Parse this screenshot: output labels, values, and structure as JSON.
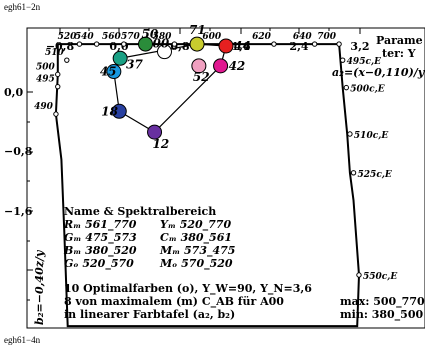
{
  "header": {
    "top_code": "egh61−2n",
    "bottom_code": "egh61−4n"
  },
  "corner": {
    "line1": "Parame",
    "line2": "ter: Y"
  },
  "axis": {
    "x_ticks": [
      "−0,8",
      "0,0",
      "0,8",
      "1,6",
      "2,4",
      "3,2"
    ],
    "y_ticks": [
      "0,0",
      "−0,8",
      "−1,6"
    ],
    "x_title": "a₂=(x−0,110)/y",
    "y_title": "b₂=−0,40z/y"
  },
  "legend": {
    "line1": "Name & Spektralbereich",
    "r_left": "Rₘ 561_770",
    "r_right": "Yₘ 520_770",
    "g_left": "Gₘ 475_573",
    "g_right": "Cₘ 380_561",
    "b_left": "Bₘ 380_520",
    "b_right": "Mₘ 573_475",
    "o_left": "Gₒ 520_570",
    "o_right": "Mₒ 570_520",
    "line6": "10 Optimalfarben (o), Y_W=90, Y_N=3,6",
    "line7": "8 von maximalem (m) C_AB für A00",
    "line8": "in linearer Farbtafel (a₂, b₂)",
    "max": "max: 500_770",
    "min": "min: 380_500"
  },
  "chart_data": {
    "type": "scatter",
    "xlim": [
      -0.95,
      3.45
    ],
    "ylim": [
      -2.95,
      0.22
    ],
    "boundary": [
      [
        -0.61,
        0.05
      ],
      [
        -0.61,
        -0.27
      ],
      [
        -0.63,
        -0.69
      ],
      [
        -0.57,
        -1.17
      ],
      [
        -0.54,
        -1.88
      ],
      [
        -0.5,
        -2.93
      ],
      [
        2.7,
        -2.93
      ],
      [
        2.72,
        -2.39
      ],
      [
        2.66,
        -1.6
      ],
      [
        2.62,
        -1.31
      ],
      [
        2.59,
        -0.9
      ],
      [
        2.54,
        -0.41
      ],
      [
        2.5,
        0.05
      ],
      [
        -0.61,
        0.05
      ]
    ],
    "spectral_points": [
      {
        "label": "490",
        "x": -0.63,
        "y": -0.69
      },
      {
        "label": "495",
        "x": -0.61,
        "y": -0.4
      },
      {
        "label": "500",
        "x": -0.61,
        "y": -0.27
      },
      {
        "label": "510",
        "x": -0.51,
        "y": -0.12
      },
      {
        "label": "520",
        "x": -0.37,
        "y": 0.05
      },
      {
        "label": "540",
        "x": -0.18,
        "y": 0.05
      },
      {
        "label": "560",
        "x": 0.12,
        "y": 0.05
      },
      {
        "label": "570",
        "x": 0.33,
        "y": 0.05
      },
      {
        "label": "580",
        "x": 0.68,
        "y": 0.05
      },
      {
        "label": "600",
        "x": 1.23,
        "y": 0.05
      },
      {
        "label": "620",
        "x": 1.78,
        "y": 0.05
      },
      {
        "label": "640",
        "x": 2.23,
        "y": 0.05
      },
      {
        "label": "700",
        "x": 2.5,
        "y": 0.05
      },
      {
        "label": "495c,E",
        "x": 2.54,
        "y": -0.12
      },
      {
        "label": "500c,E",
        "x": 2.58,
        "y": -0.41
      },
      {
        "label": "510c,E",
        "x": 2.62,
        "y": -0.9
      },
      {
        "label": "525c,E",
        "x": 2.66,
        "y": -1.31
      },
      {
        "label": "550c,E",
        "x": 2.72,
        "y": -2.39
      }
    ],
    "samples": [
      {
        "label": "71",
        "x": 0.93,
        "y": 0.05,
        "color": "#c8cc2e"
      },
      {
        "label": "37",
        "x": 0.08,
        "y": -0.1,
        "color": "#1aa084"
      },
      {
        "label": "45",
        "x": 0.01,
        "y": -0.24,
        "color": "#1898e0"
      },
      {
        "label": "44",
        "x": 1.25,
        "y": 0.03,
        "color": "#e62020"
      },
      {
        "label": "42",
        "x": 1.19,
        "y": -0.18,
        "color": "#e01890"
      },
      {
        "label": "52",
        "x": 0.95,
        "y": -0.18,
        "color": "#f0a0c0"
      },
      {
        "label": "18",
        "x": 0.07,
        "y": -0.66,
        "color": "#2840a0"
      },
      {
        "label": "12",
        "x": 0.46,
        "y": -0.88,
        "color": "#6830a0"
      },
      {
        "label": "00",
        "x": 0.57,
        "y": -0.03,
        "color": "#ffffff"
      },
      {
        "label": "50",
        "x": 0.36,
        "y": 0.05,
        "color": "#2a8c3a"
      }
    ],
    "polygon": [
      "37",
      "71",
      "44",
      "42",
      "12",
      "18",
      "45",
      "37"
    ]
  }
}
